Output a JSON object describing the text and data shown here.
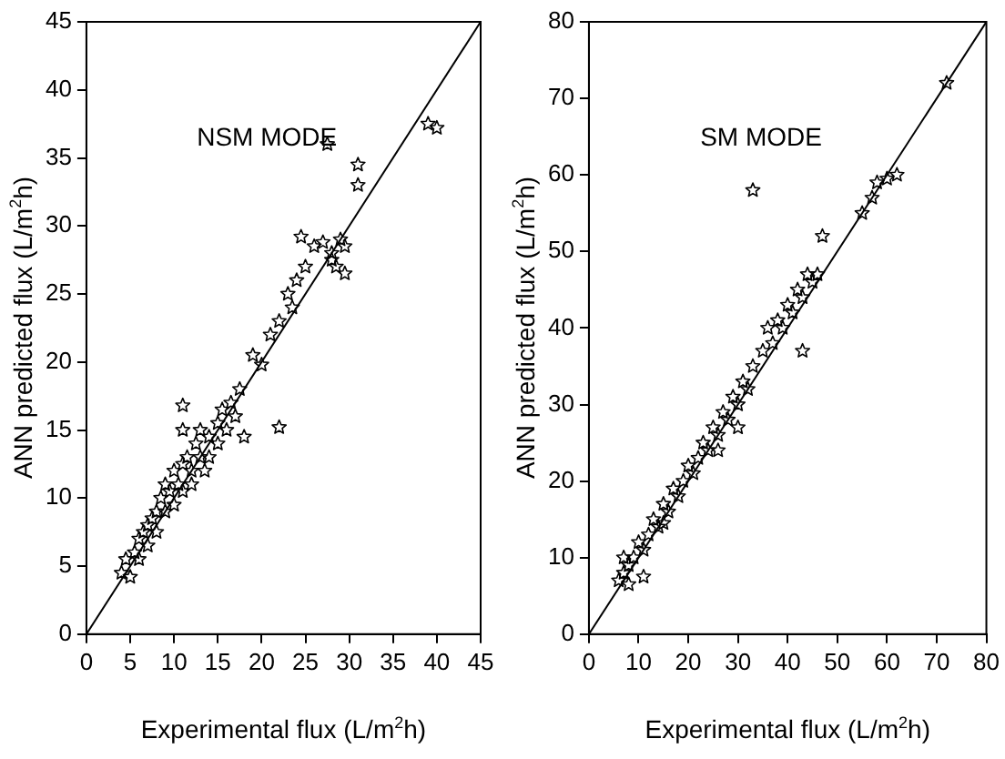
{
  "chart_data": [
    {
      "type": "scatter",
      "annotations": [
        "NSM MODE"
      ],
      "xlabel": "Experimental flux (L/m$^{2}$h)",
      "ylabel": "ANN predicted flux (L/m$^{2}$h)",
      "xlim": [
        0,
        45
      ],
      "ylim": [
        0,
        45
      ],
      "xticks": [
        0,
        5,
        10,
        15,
        20,
        25,
        30,
        35,
        40,
        45
      ],
      "yticks": [
        0,
        5,
        10,
        15,
        20,
        25,
        30,
        35,
        40,
        45
      ],
      "grid": false,
      "legend": false,
      "series": [
        {
          "type": "scatter",
          "marker": "star",
          "color": "#000000",
          "x": [
            4,
            4.5,
            5,
            5.5,
            6,
            6,
            6.5,
            7,
            7,
            7.5,
            8,
            8,
            8.5,
            9,
            9,
            9.5,
            10,
            10,
            10.5,
            11,
            11,
            11.5,
            12,
            12,
            12.5,
            13,
            13,
            13.5,
            14,
            14,
            15,
            15,
            15.5,
            16,
            16.5,
            17,
            17.5,
            11,
            11,
            18,
            22,
            19,
            20,
            21,
            22,
            23,
            24,
            23.5,
            25,
            26,
            27,
            28,
            28.5,
            29,
            29.5,
            24.5,
            27.5,
            31,
            31,
            39,
            40,
            29.5,
            28
          ],
          "values": [
            4.5,
            5.5,
            4.2,
            6,
            5.5,
            7,
            7.5,
            6.5,
            8,
            8.5,
            7.5,
            9,
            10,
            9,
            11,
            10.5,
            12,
            9.5,
            11,
            12.5,
            10.5,
            13,
            12,
            11,
            14,
            13,
            15,
            12,
            14.5,
            13,
            15.5,
            14,
            16.5,
            15,
            17,
            16,
            18,
            16.8,
            15,
            14.5,
            15.2,
            20.5,
            19.8,
            22,
            23,
            25,
            26,
            24,
            27,
            28.5,
            28.8,
            28,
            27,
            29,
            28.5,
            29.2,
            36,
            34.5,
            33,
            37.5,
            37.2,
            26.5,
            27.5
          ]
        },
        {
          "type": "line",
          "color": "#000000",
          "x": [
            0,
            45
          ],
          "values": [
            0,
            45
          ]
        }
      ]
    },
    {
      "type": "scatter",
      "annotations": [
        "SM MODE"
      ],
      "xlabel": "Experimental flux (L/m$^{2}$h)",
      "ylabel": "ANN predicted flux (L/m$^{2}$h)",
      "xlim": [
        0,
        80
      ],
      "ylim": [
        0,
        80
      ],
      "xticks": [
        0,
        10,
        20,
        30,
        40,
        50,
        60,
        70,
        80
      ],
      "yticks": [
        0,
        10,
        20,
        30,
        40,
        50,
        60,
        70,
        80
      ],
      "grid": false,
      "legend": false,
      "series": [
        {
          "type": "scatter",
          "marker": "star",
          "color": "#000000",
          "x": [
            6,
            7,
            8,
            9,
            7,
            8,
            10,
            11,
            12,
            13,
            14,
            15,
            16,
            17,
            18,
            19,
            20,
            21,
            22,
            23,
            24,
            25,
            26,
            27,
            28,
            29,
            30,
            31,
            32,
            33,
            35,
            36,
            37,
            38,
            39,
            40,
            41,
            42,
            43,
            44,
            45,
            46,
            47,
            43,
            33,
            55,
            57,
            58,
            60,
            62,
            72,
            11,
            15,
            26,
            30
          ],
          "values": [
            7,
            8,
            9,
            10,
            10,
            6.5,
            12,
            11,
            13,
            15,
            14,
            17,
            16,
            19,
            18,
            20,
            22,
            21,
            23,
            25,
            24,
            27,
            26,
            29,
            28,
            31,
            30,
            33,
            32,
            35,
            37,
            40,
            38,
            41,
            40,
            43,
            42,
            45,
            44,
            47,
            46,
            47,
            52,
            37,
            58,
            55,
            57,
            59,
            59.5,
            60,
            72,
            7.5,
            14.5,
            24,
            27
          ]
        },
        {
          "type": "line",
          "color": "#000000",
          "x": [
            0,
            80
          ],
          "values": [
            0,
            80
          ]
        }
      ]
    }
  ]
}
